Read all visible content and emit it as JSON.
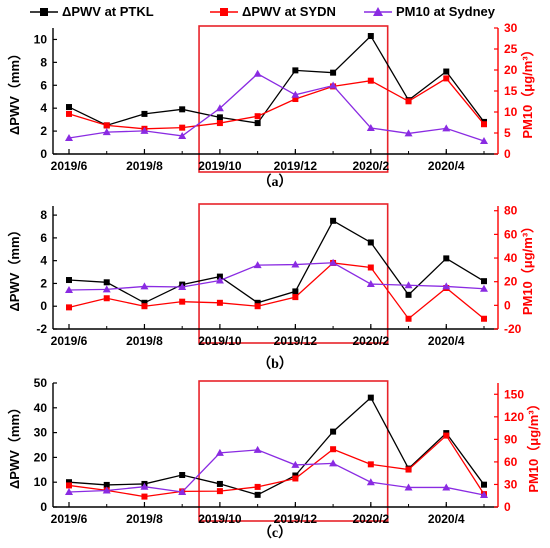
{
  "legend": [
    {
      "label": "ΔPWV at PTKL",
      "color": "#000000",
      "marker": "square"
    },
    {
      "label": "ΔPWV at SYDN",
      "color": "#ff0000",
      "marker": "square"
    },
    {
      "label": "PM10 at Sydney",
      "color": "#8a2be2",
      "marker": "triangle"
    }
  ],
  "colors": {
    "ptkl": "#000000",
    "sydn": "#ff0000",
    "pm10": "#8a2be2",
    "highlight": "#e8232a",
    "right_axis": "#ff0000"
  },
  "chart_data": [
    {
      "type": "line",
      "panel_label": "（a）",
      "x": [
        "2019/6",
        "2019/7",
        "2019/8",
        "2019/9",
        "2019/10",
        "2019/11",
        "2019/12",
        "2020/1",
        "2020/2",
        "2020/3",
        "2020/4",
        "2020/5"
      ],
      "xticks": [
        "2019/6",
        "2019/8",
        "2019/10",
        "2019/12",
        "2020/2",
        "2020/4"
      ],
      "ylabel": "ΔPWV（mm）",
      "y2label": "PM10（μg/m³）",
      "ylim": [
        0,
        11
      ],
      "yticks": [
        0,
        2,
        4,
        6,
        8,
        10
      ],
      "y2lim": [
        0,
        30
      ],
      "y2ticks": [
        0,
        5,
        10,
        15,
        20,
        25,
        30
      ],
      "highlight": [
        "2019/9.5",
        "2020/2.5"
      ],
      "series": [
        {
          "name": "ΔPWV at PTKL",
          "axis": "left",
          "values": [
            4.1,
            2.5,
            3.5,
            3.9,
            3.2,
            2.7,
            7.3,
            7.1,
            10.3,
            4.7,
            7.2,
            2.8
          ]
        },
        {
          "name": "ΔPWV at SYDN",
          "axis": "left",
          "values": [
            3.5,
            2.5,
            2.2,
            2.3,
            2.7,
            3.3,
            4.8,
            5.9,
            6.4,
            4.6,
            6.6,
            2.6
          ]
        },
        {
          "name": "PM10 at Sydney",
          "axis": "right",
          "values": [
            3.8,
            5.2,
            5.5,
            4.3,
            10.9,
            19.1,
            14.1,
            16.3,
            6.2,
            4.9,
            6.1,
            3.1
          ]
        }
      ]
    },
    {
      "type": "line",
      "panel_label": "（b）",
      "x": [
        "2019/6",
        "2019/7",
        "2019/8",
        "2019/9",
        "2019/10",
        "2019/11",
        "2019/12",
        "2020/1",
        "2020/2",
        "2020/3",
        "2020/4",
        "2020/5"
      ],
      "xticks": [
        "2019/6",
        "2019/8",
        "2019/10",
        "2019/12",
        "2020/2",
        "2020/4"
      ],
      "ylabel": "ΔPWV（mm）",
      "y2label": "PM10（μg/m³）",
      "ylim": [
        -2,
        8.8
      ],
      "yticks": [
        -2,
        0,
        2,
        4,
        6,
        8
      ],
      "y2lim": [
        -20,
        84
      ],
      "y2ticks": [
        -20,
        0,
        20,
        40,
        60,
        80
      ],
      "highlight": [
        "2019/9.5",
        "2020/2.5"
      ],
      "series": [
        {
          "name": "ΔPWV at PTKL",
          "axis": "left",
          "values": [
            2.3,
            2.1,
            0.3,
            1.9,
            2.6,
            0.3,
            1.3,
            7.5,
            5.6,
            1.0,
            4.2,
            2.2
          ]
        },
        {
          "name": "ΔPWV at SYDN",
          "axis": "left",
          "values": [
            -0.1,
            0.7,
            0.0,
            0.4,
            0.3,
            0.0,
            0.8,
            3.8,
            3.4,
            -1.1,
            1.6,
            -1.1
          ]
        },
        {
          "name": "PM10 at Sydney",
          "axis": "right",
          "values": [
            13,
            13.5,
            16,
            15.5,
            21,
            34,
            34.5,
            36,
            18,
            17,
            16,
            14
          ]
        }
      ]
    },
    {
      "type": "line",
      "panel_label": "（c）",
      "x": [
        "2019/6",
        "2019/7",
        "2019/8",
        "2019/9",
        "2019/10",
        "2019/11",
        "2019/12",
        "2020/1",
        "2020/2",
        "2020/3",
        "2020/4",
        "2020/5"
      ],
      "xticks": [
        "2019/6",
        "2019/8",
        "2019/10",
        "2019/12",
        "2020/2",
        "2020/4"
      ],
      "ylabel": "ΔPWV（mm）",
      "y2label": "PM10（μg/m³）",
      "ylim": [
        0,
        50
      ],
      "yticks": [
        0,
        10,
        20,
        30,
        40,
        50
      ],
      "y2lim": [
        0,
        165
      ],
      "y2ticks": [
        0,
        30,
        60,
        90,
        120,
        150
      ],
      "highlight": [
        "2019/9.5",
        "2020/2.5"
      ],
      "series": [
        {
          "name": "ΔPWV at PTKL",
          "axis": "left",
          "values": [
            10.0,
            8.9,
            9.3,
            12.9,
            9.3,
            4.9,
            12.7,
            30.4,
            44.1,
            15.5,
            29.8,
            9.0
          ]
        },
        {
          "name": "ΔPWV at SYDN",
          "axis": "left",
          "values": [
            8.7,
            6.7,
            4.2,
            6.3,
            6.4,
            8.1,
            11.5,
            23.3,
            17.2,
            15.1,
            28.8,
            5.2
          ]
        },
        {
          "name": "PM10 at Sydney",
          "axis": "right",
          "values": [
            20,
            22,
            27,
            20,
            72,
            76,
            56,
            58,
            33,
            26,
            26,
            16
          ]
        }
      ]
    }
  ]
}
